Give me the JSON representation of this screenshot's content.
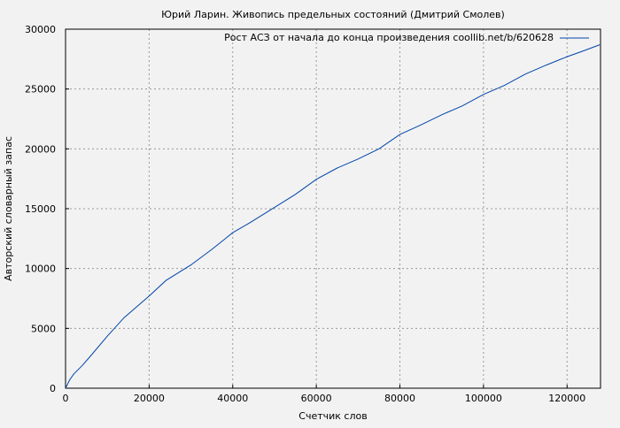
{
  "chart_data": {
    "type": "line",
    "title": "Юрий Ларин. Живопись предельных состояний (Дмитрий Смолев)",
    "xlabel": "Счетчик слов",
    "ylabel": "Авторский словарный запас",
    "xlim": [
      0,
      128000
    ],
    "ylim": [
      0,
      30000
    ],
    "xticks": [
      "0",
      "20000",
      "40000",
      "60000",
      "80000",
      "100000",
      "120000"
    ],
    "yticks": [
      "0",
      "5000",
      "10000",
      "15000",
      "20000",
      "25000",
      "30000"
    ],
    "grid": true,
    "legend_position": "top-right",
    "series": [
      {
        "name": "Рост АСЗ от начала до конца произведения coollib.net/b/620628",
        "color": "#0044aa",
        "x": [
          0,
          1000,
          2000,
          4000,
          6000,
          10000,
          14000,
          20000,
          24000,
          30000,
          35000,
          40000,
          44000,
          50000,
          55000,
          60000,
          65000,
          70000,
          75000,
          80000,
          85000,
          90000,
          95000,
          100000,
          105000,
          110000,
          115000,
          120000,
          124000,
          127800
        ],
        "y": [
          0,
          700,
          1200,
          1900,
          2700,
          4350,
          5900,
          7700,
          9000,
          10300,
          11600,
          13000,
          13800,
          15100,
          16200,
          17450,
          18400,
          19150,
          20000,
          21200,
          22000,
          22850,
          23600,
          24550,
          25300,
          26250,
          27000,
          27700,
          28200,
          28700
        ]
      }
    ]
  }
}
